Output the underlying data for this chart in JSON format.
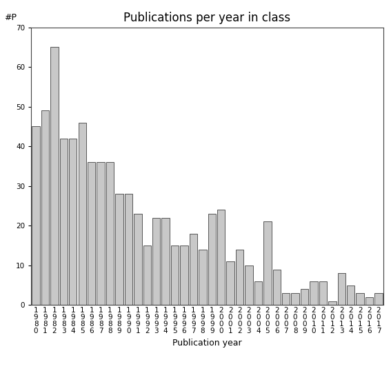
{
  "title": "Publications per year in class",
  "xlabel": "Publication year",
  "ylabel": "#P",
  "bar_color": "#c8c8c8",
  "bar_edgecolor": "#404040",
  "ylim": [
    0,
    70
  ],
  "yticks": [
    0,
    10,
    20,
    30,
    40,
    50,
    60,
    70
  ],
  "categories": [
    "1980",
    "1981",
    "1982",
    "1983",
    "1984",
    "1985",
    "1986",
    "1987",
    "1988",
    "1989",
    "1990",
    "1991",
    "1992",
    "1993",
    "1994",
    "1995",
    "1996",
    "1997",
    "1998",
    "1999",
    "2000",
    "2001",
    "2002",
    "2003",
    "2004",
    "2005",
    "2006",
    "2007",
    "2008",
    "2009",
    "2010",
    "2011",
    "2012",
    "2013",
    "2014",
    "2015",
    "2016",
    "2017"
  ],
  "values": [
    45,
    49,
    65,
    42,
    42,
    46,
    36,
    36,
    36,
    28,
    28,
    23,
    15,
    22,
    22,
    15,
    15,
    18,
    14,
    23,
    24,
    11,
    14,
    10,
    6,
    21,
    9,
    3,
    3,
    4,
    6,
    6,
    1,
    8,
    5,
    3,
    2,
    3
  ],
  "background_color": "#ffffff",
  "title_fontsize": 12,
  "label_fontsize": 9,
  "tick_fontsize": 7.5
}
